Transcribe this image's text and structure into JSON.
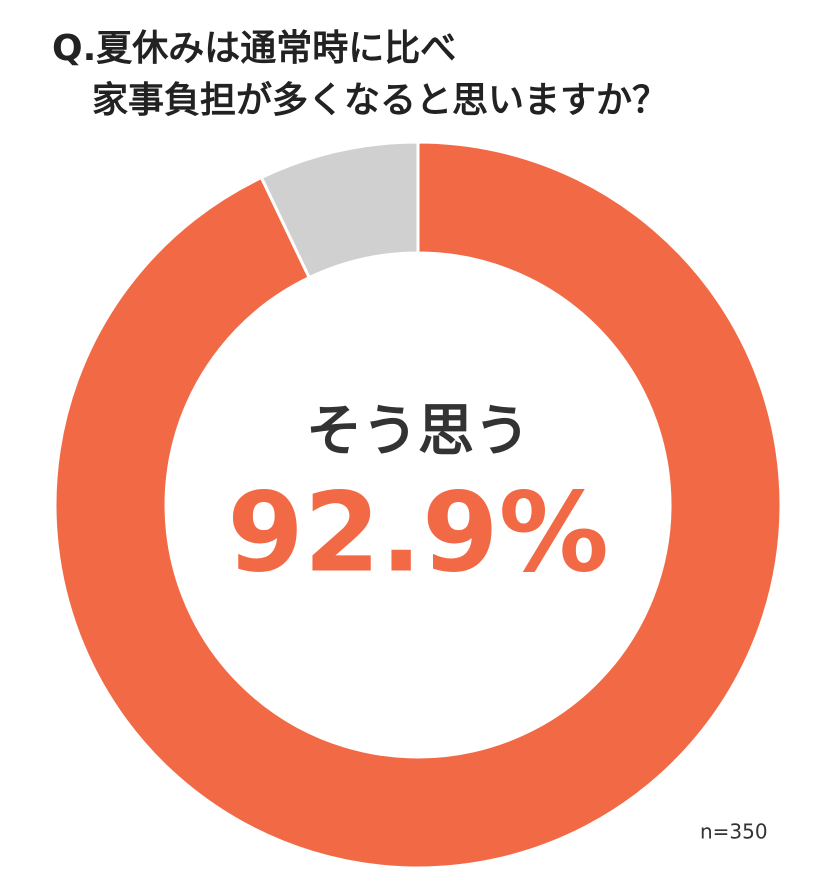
{
  "chart_data": {
    "type": "donut",
    "title": [
      "Q.夏休みは通常時に比べ",
      "家事負担が多くなると思いますか？"
    ],
    "categories": [
      "そう思う",
      null
    ],
    "values": [
      92.9,
      7.1
    ],
    "value_labels": [
      "92.9%",
      null
    ],
    "colors": [
      "#f26a45",
      "#d0d0d0"
    ],
    "note": "n=350"
  }
}
